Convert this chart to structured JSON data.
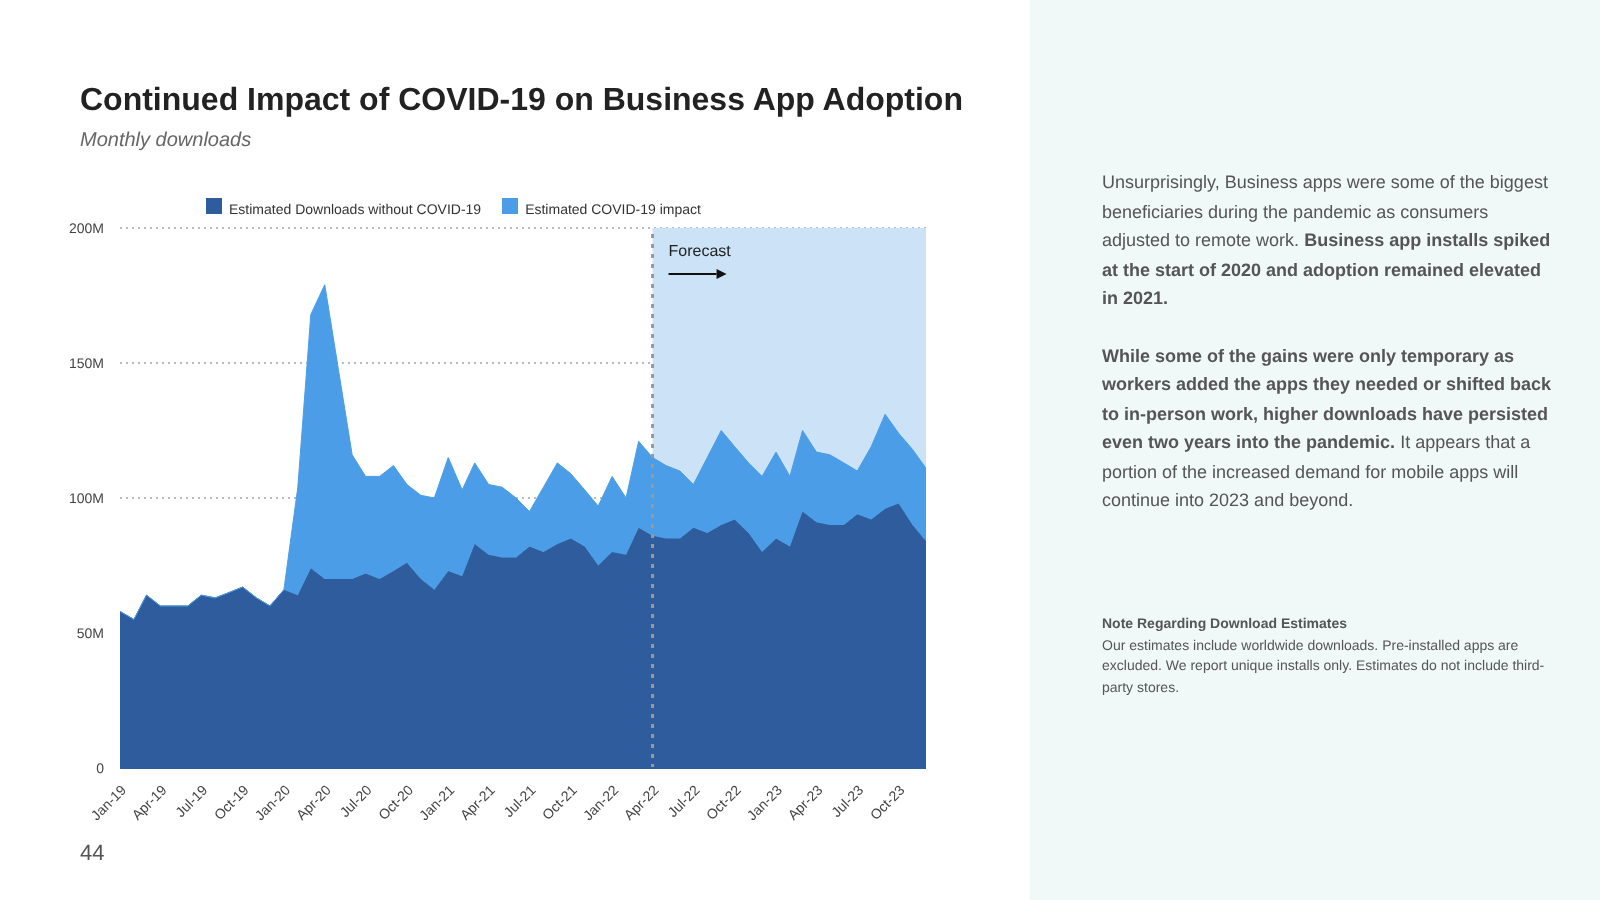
{
  "chart_data": {
    "type": "area",
    "title": "Continued Impact of COVID-19 on Business App Adoption",
    "subtitle": "Monthly downloads",
    "x": [
      "2019-01",
      "2019-02",
      "2019-03",
      "2019-04",
      "2019-05",
      "2019-06",
      "2019-07",
      "2019-08",
      "2019-09",
      "2019-10",
      "2019-11",
      "2019-12",
      "2020-01",
      "2020-02",
      "2020-03",
      "2020-04",
      "2020-05",
      "2020-06",
      "2020-07",
      "2020-08",
      "2020-09",
      "2020-10",
      "2020-11",
      "2020-12",
      "2021-01",
      "2021-02",
      "2021-03",
      "2021-04",
      "2021-05",
      "2021-06",
      "2021-07",
      "2021-08",
      "2021-09",
      "2021-10",
      "2021-11",
      "2021-12",
      "2022-01",
      "2022-02",
      "2022-03",
      "2022-04",
      "2022-05",
      "2022-06",
      "2022-07",
      "2022-08",
      "2022-09",
      "2022-10",
      "2022-11",
      "2022-12",
      "2023-01",
      "2023-02",
      "2023-03",
      "2023-04",
      "2023-05",
      "2023-06",
      "2023-07",
      "2023-08",
      "2023-09",
      "2023-10",
      "2023-11",
      "2023-12"
    ],
    "xlim": [
      "2019-01",
      "2023-12"
    ],
    "xticks": [
      {
        "value": "2019-01",
        "label": "Jan-19"
      },
      {
        "value": "2019-04",
        "label": "Apr-19"
      },
      {
        "value": "2019-07",
        "label": "Jul-19"
      },
      {
        "value": "2019-10",
        "label": "Oct-19"
      },
      {
        "value": "2020-01",
        "label": "Jan-20"
      },
      {
        "value": "2020-04",
        "label": "Apr-20"
      },
      {
        "value": "2020-07",
        "label": "Jul-20"
      },
      {
        "value": "2020-10",
        "label": "Oct-20"
      },
      {
        "value": "2021-01",
        "label": "Jan-21"
      },
      {
        "value": "2021-04",
        "label": "Apr-21"
      },
      {
        "value": "2021-07",
        "label": "Jul-21"
      },
      {
        "value": "2021-10",
        "label": "Oct-21"
      },
      {
        "value": "2022-01",
        "label": "Jan-22"
      },
      {
        "value": "2022-04",
        "label": "Apr-22"
      },
      {
        "value": "2022-07",
        "label": "Jul-22"
      },
      {
        "value": "2022-10",
        "label": "Oct-22"
      },
      {
        "value": "2023-01",
        "label": "Jan-23"
      },
      {
        "value": "2023-04",
        "label": "Apr-23"
      },
      {
        "value": "2023-07",
        "label": "Jul-23"
      },
      {
        "value": "2023-10",
        "label": "Oct-23"
      }
    ],
    "stacked": true,
    "series": [
      {
        "name": "Estimated Downloads without COVID-19",
        "color": "#2e5c9c",
        "values": [
          58,
          55,
          64,
          60,
          60,
          60,
          64,
          63,
          65,
          67,
          63,
          60,
          66,
          64,
          74,
          70,
          70,
          70,
          72,
          70,
          73,
          76,
          70,
          66,
          73,
          71,
          83,
          79,
          78,
          78,
          82,
          80,
          83,
          85,
          82,
          75,
          80,
          79,
          89,
          86,
          85,
          85,
          89,
          87,
          90,
          92,
          87,
          80,
          85,
          82,
          95,
          91,
          90,
          90,
          94,
          92,
          96,
          98,
          90,
          84
        ]
      },
      {
        "name": "Estimated COVID-19 impact",
        "color": "#4a9de6",
        "values": [
          0,
          0,
          0,
          0,
          0,
          0,
          0,
          0,
          0,
          0,
          0,
          0,
          0,
          40,
          94,
          109,
          78,
          46,
          36,
          38,
          39,
          29,
          31,
          34,
          42,
          32,
          30,
          26,
          26,
          22,
          13,
          24,
          30,
          24,
          21,
          22,
          28,
          21,
          32,
          29,
          27,
          25,
          16,
          28,
          35,
          27,
          26,
          28,
          32,
          26,
          30,
          26,
          26,
          23,
          16,
          27,
          35,
          26,
          28,
          27
        ]
      }
    ],
    "ylim": [
      0,
      200
    ],
    "yticks": [
      0,
      {
        "value": 50,
        "label": "50M"
      },
      {
        "value": 100,
        "label": "100M"
      },
      {
        "value": 150,
        "label": "150M"
      },
      {
        "value": 200,
        "label": "200M"
      }
    ],
    "grid": "y",
    "legend": "top",
    "ref_lines": [
      {
        "axis": "x",
        "value": "2022-04",
        "label": null,
        "color": "#999999",
        "line_style": "dotted"
      }
    ],
    "bands": [
      {
        "axis": "x",
        "from": "2022-04",
        "to": "2023-12",
        "label": "Forecast",
        "color": "#cce2f7"
      }
    ],
    "annotations": [
      "Unsurprisingly, Business apps were some of the biggest beneficiaries during the pandemic as consumers adjusted to remote work.",
      "Business app installs spiked at the start of 2020 and adoption remained elevated in 2021.",
      "While some of the gains were only temporary as workers added the apps they needed or shifted back to in-person work, higher downloads have persisted even two years into the pandemic.",
      "It appears that a portion of the increased demand for mobile apps will continue into 2023 and beyond.",
      "Note Regarding Download Estimates",
      "Our estimates include worldwide downloads. Pre-installed apps are excluded. We report unique installs only. Estimates do not include third-party stores.",
      "44"
    ]
  }
}
